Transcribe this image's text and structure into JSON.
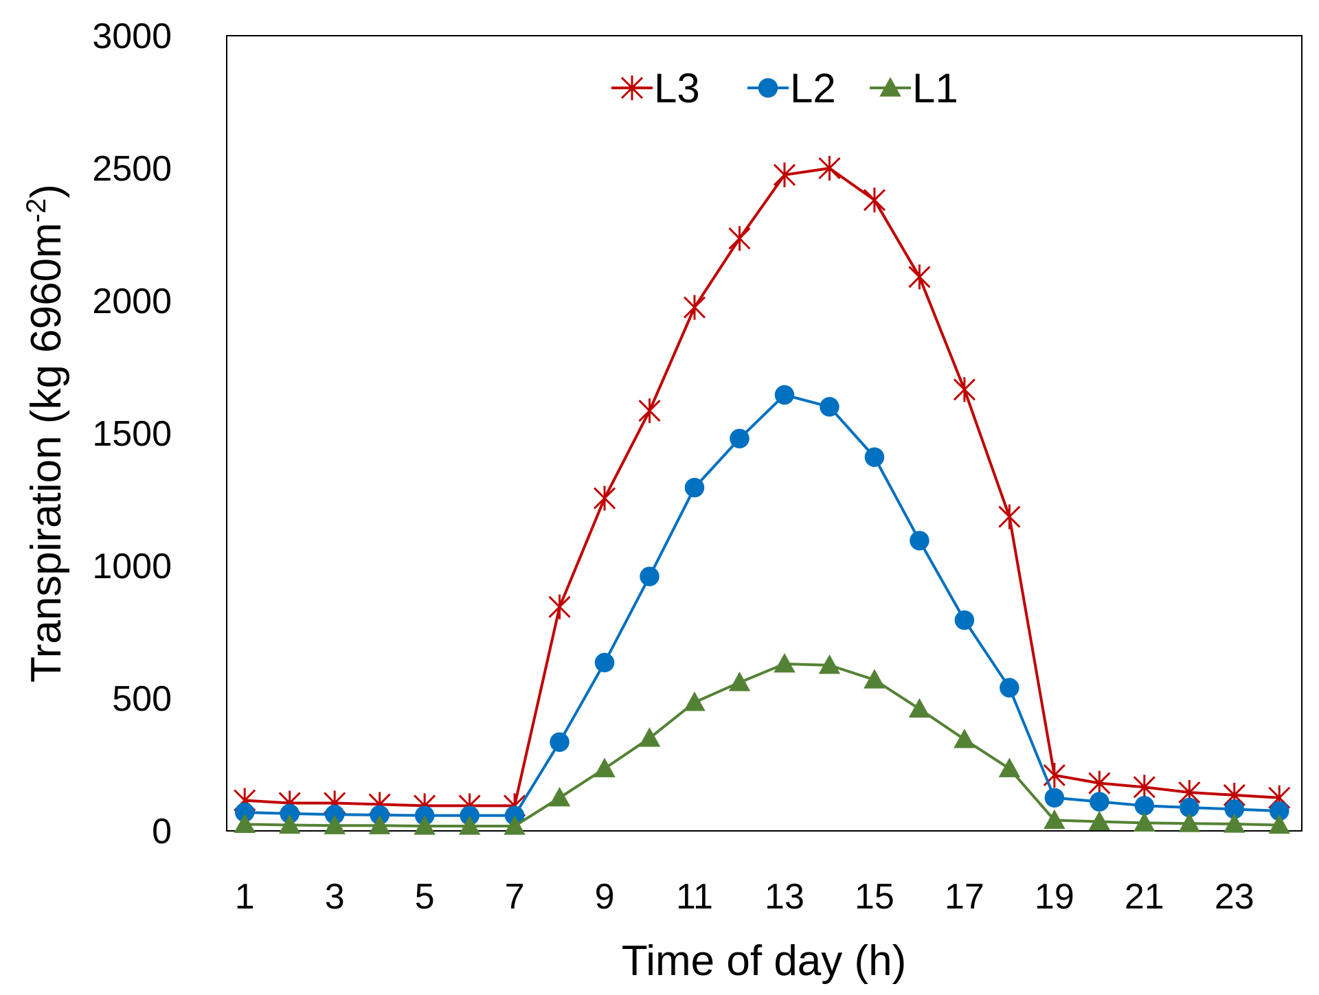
{
  "chart_data": {
    "type": "line",
    "xlabel": "Time of day (h)",
    "ylabel": {
      "main": "Transpiration (kg 6960m",
      "superscript": "-2",
      "close": ")"
    },
    "ylim": [
      0,
      3000
    ],
    "yticks": [
      0,
      500,
      1000,
      1500,
      2000,
      2500,
      3000
    ],
    "xlim": [
      0.6,
      24.5
    ],
    "xticks": [
      1,
      3,
      5,
      7,
      9,
      11,
      13,
      15,
      17,
      19,
      21,
      23
    ],
    "grid": false,
    "legend_position": "top-center",
    "x": [
      1,
      2,
      3,
      4,
      5,
      6,
      7,
      8,
      9,
      10,
      11,
      12,
      13,
      14,
      15,
      16,
      17,
      18,
      19,
      20,
      21,
      22,
      23,
      24
    ],
    "series": [
      {
        "name": "L3",
        "color": "#C00000",
        "marker": "star",
        "values": [
          115,
          105,
          105,
          100,
          95,
          95,
          95,
          845,
          1255,
          1585,
          1975,
          2235,
          2475,
          2500,
          2380,
          2090,
          1665,
          1185,
          210,
          180,
          165,
          145,
          135,
          125
        ]
      },
      {
        "name": "L2",
        "color": "#0070C0",
        "marker": "circle",
        "values": [
          70,
          65,
          62,
          60,
          58,
          58,
          58,
          335,
          635,
          960,
          1295,
          1480,
          1645,
          1600,
          1410,
          1095,
          795,
          540,
          125,
          110,
          95,
          88,
          82,
          75
        ]
      },
      {
        "name": "L1",
        "color": "#548235",
        "marker": "triangle",
        "values": [
          25,
          22,
          20,
          20,
          18,
          18,
          18,
          125,
          235,
          350,
          485,
          560,
          630,
          625,
          570,
          460,
          345,
          235,
          40,
          35,
          30,
          28,
          26,
          22
        ]
      }
    ]
  }
}
